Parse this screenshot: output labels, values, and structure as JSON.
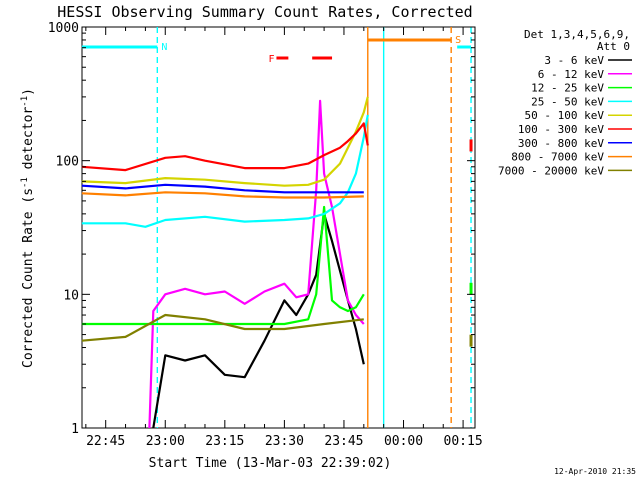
{
  "chart_data": {
    "type": "line",
    "title": "HESSI Observing Summary Count Rates, Corrected",
    "xlabel": "Start Time (13-Mar-03 22:39:02)",
    "ylabel": "Corrected Count Rate (s⁻¹ detector⁻¹)",
    "ylabel_parts": {
      "main": "Corrected Count Rate (s",
      "exp1": "-1",
      "mid": " detector",
      "exp2": "-1",
      "end": ")"
    },
    "x_axis": {
      "type": "time",
      "start": "22:39:02",
      "end": "00:18:00",
      "tick_labels": [
        "22:45",
        "23:00",
        "23:15",
        "23:30",
        "23:45",
        "00:00",
        "00:15"
      ]
    },
    "y_axis": {
      "scale": "log",
      "range": [
        1,
        1000
      ],
      "tick_labels": [
        "1",
        "10",
        "100",
        "1000"
      ]
    },
    "legend": {
      "position": "right",
      "header": [
        "Det 1,3,4,5,6,9,",
        "Att 0"
      ],
      "entries": [
        {
          "label": "3 - 6 keV",
          "color": "#000000"
        },
        {
          "label": "6 - 12 keV",
          "color": "#ff00ff"
        },
        {
          "label": "12 - 25 keV",
          "color": "#00ff00"
        },
        {
          "label": "25 - 50 keV",
          "color": "#00ffff"
        },
        {
          "label": "50 - 100 keV",
          "color": "#d4d400"
        },
        {
          "label": "100 - 300 keV",
          "color": "#ff0000"
        },
        {
          "label": "300 - 800 keV",
          "color": "#0000ff"
        },
        {
          "label": "800 - 7000 keV",
          "color": "#ff8000"
        },
        {
          "label": "7000 - 20000 keV",
          "color": "#808000"
        }
      ]
    },
    "flags": [
      {
        "label": "N",
        "color": "#00ffff",
        "start": "22:39",
        "end": "22:58"
      },
      {
        "label": "S",
        "color": "#ff8000",
        "start": "23:51",
        "end": "00:12"
      },
      {
        "label": "F",
        "color": "#ff0000",
        "segments": [
          [
            "23:28",
            "23:31"
          ],
          [
            "23:37",
            "23:42"
          ]
        ]
      }
    ],
    "vertical_markers": [
      {
        "time": "22:58",
        "color": "#00ffff",
        "style": "dashed"
      },
      {
        "time": "23:51",
        "color": "#ff8000",
        "style": "solid"
      },
      {
        "time": "23:55",
        "color": "#00ffff",
        "style": "solid"
      },
      {
        "time": "00:12",
        "color": "#ff8000",
        "style": "dashed"
      },
      {
        "time": "00:17",
        "color": "#00ffff",
        "style": "dashed"
      }
    ],
    "series": [
      {
        "name": "3 - 6 keV",
        "color": "#000000",
        "x": [
          "22:57",
          "23:00",
          "23:05",
          "23:10",
          "23:15",
          "23:20",
          "23:25",
          "23:30",
          "23:33",
          "23:36",
          "23:38",
          "23:40",
          "23:42",
          "23:44",
          "23:46",
          "23:48",
          "23:50"
        ],
        "y": [
          1.0,
          3.5,
          3.2,
          3.5,
          2.5,
          2.4,
          4.5,
          9.0,
          7.0,
          10.0,
          14.0,
          40.0,
          25.0,
          15.0,
          9.0,
          5.5,
          3.0
        ]
      },
      {
        "name": "6 - 12 keV",
        "color": "#ff00ff",
        "x": [
          "22:56",
          "22:57",
          "23:00",
          "23:05",
          "23:10",
          "23:15",
          "23:20",
          "23:25",
          "23:30",
          "23:33",
          "23:36",
          "23:38",
          "23:39",
          "23:40",
          "23:42",
          "23:44",
          "23:46",
          "23:48",
          "23:50"
        ],
        "y": [
          1.0,
          7.5,
          10.0,
          11.0,
          10.0,
          10.5,
          8.5,
          10.5,
          12.0,
          9.5,
          10.0,
          60.0,
          280.0,
          80.0,
          45.0,
          20.0,
          9.0,
          7.0,
          6.0
        ]
      },
      {
        "name": "12 - 25 keV",
        "color": "#00ff00",
        "x": [
          "22:39",
          "22:50",
          "23:00",
          "23:10",
          "23:20",
          "23:30",
          "23:36",
          "23:38",
          "23:40",
          "23:42",
          "23:44",
          "23:46",
          "23:48",
          "23:50"
        ],
        "y": [
          6.0,
          6.0,
          6.0,
          6.0,
          6.0,
          6.0,
          6.5,
          10.0,
          45.0,
          9.0,
          8.0,
          7.5,
          8.0,
          10.0
        ]
      },
      {
        "name": "25 - 50 keV",
        "color": "#00ffff",
        "x": [
          "22:39",
          "22:50",
          "22:55",
          "23:00",
          "23:10",
          "23:20",
          "23:30",
          "23:36",
          "23:40",
          "23:44",
          "23:46",
          "23:48",
          "23:50",
          "23:51"
        ],
        "y": [
          34.0,
          34.0,
          32.0,
          36.0,
          38.0,
          35.0,
          36.0,
          37.0,
          40.0,
          48.0,
          58.0,
          80.0,
          150.0,
          220.0
        ]
      },
      {
        "name": "50 - 100 keV",
        "color": "#d4d400",
        "x": [
          "22:39",
          "22:50",
          "23:00",
          "23:10",
          "23:20",
          "23:30",
          "23:36",
          "23:40",
          "23:44",
          "23:46",
          "23:48",
          "23:50",
          "23:51"
        ],
        "y": [
          70.0,
          68.0,
          74.0,
          72.0,
          68.0,
          65.0,
          66.0,
          72.0,
          95.0,
          125.0,
          165.0,
          230.0,
          300.0
        ]
      },
      {
        "name": "100 - 300 keV",
        "color": "#ff0000",
        "x": [
          "22:39",
          "22:50",
          "23:00",
          "23:05",
          "23:10",
          "23:20",
          "23:30",
          "23:36",
          "23:40",
          "23:44",
          "23:46",
          "23:48",
          "23:50",
          "23:51"
        ],
        "y": [
          90.0,
          85.0,
          105.0,
          108.0,
          100.0,
          88.0,
          88.0,
          95.0,
          110.0,
          125.0,
          140.0,
          160.0,
          190.0,
          130.0
        ]
      },
      {
        "name": "300 - 800 keV",
        "color": "#0000ff",
        "x": [
          "22:39",
          "22:50",
          "23:00",
          "23:10",
          "23:20",
          "23:30",
          "23:40",
          "23:50"
        ],
        "y": [
          65.0,
          62.0,
          66.0,
          64.0,
          60.0,
          58.0,
          58.0,
          58.0
        ]
      },
      {
        "name": "800 - 7000 keV",
        "color": "#ff8000",
        "x": [
          "22:39",
          "22:50",
          "23:00",
          "23:10",
          "23:20",
          "23:30",
          "23:40",
          "23:50"
        ],
        "y": [
          57.0,
          55.0,
          58.0,
          57.0,
          54.0,
          53.0,
          53.0,
          54.0
        ]
      },
      {
        "name": "7000 - 20000 keV",
        "color": "#808000",
        "x": [
          "22:39",
          "22:50",
          "23:00",
          "23:10",
          "23:20",
          "23:30",
          "23:40",
          "23:50"
        ],
        "y": [
          4.5,
          4.8,
          7.0,
          6.5,
          5.5,
          5.5,
          6.0,
          6.5
        ]
      }
    ],
    "post_gap_points": [
      {
        "time": "00:17",
        "series": "100 - 300 keV",
        "value": 130.0
      },
      {
        "time": "00:17",
        "series": "12 - 25 keV",
        "value": 11.0
      },
      {
        "time": "00:17",
        "series": "7000 - 20000 keV",
        "value": 4.5
      }
    ],
    "footer_date": "12-Apr-2010 21:35"
  }
}
